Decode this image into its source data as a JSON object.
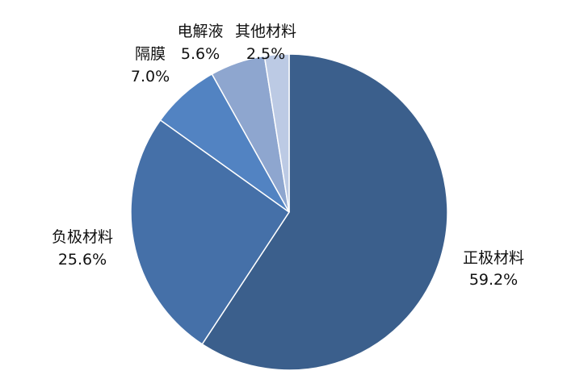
{
  "chart_data": {
    "type": "pie",
    "title": "",
    "slices": [
      {
        "label": "正极材料",
        "value": 59.2,
        "value_label": "59.2%",
        "color": "#3B5F8C"
      },
      {
        "label": "负极材料",
        "value": 25.6,
        "value_label": "25.6%",
        "color": "#4570A8"
      },
      {
        "label": "隔膜",
        "value": 7.0,
        "value_label": "7.0%",
        "color": "#5283C2"
      },
      {
        "label": "电解液",
        "value": 5.6,
        "value_label": "5.6%",
        "color": "#8EA6CF"
      },
      {
        "label": "其他材料",
        "value": 2.5,
        "value_label": "2.5%",
        "color": "#BCCAE4"
      }
    ],
    "start_angle": "12 o'clock",
    "direction": "clockwise",
    "legend": "none"
  }
}
